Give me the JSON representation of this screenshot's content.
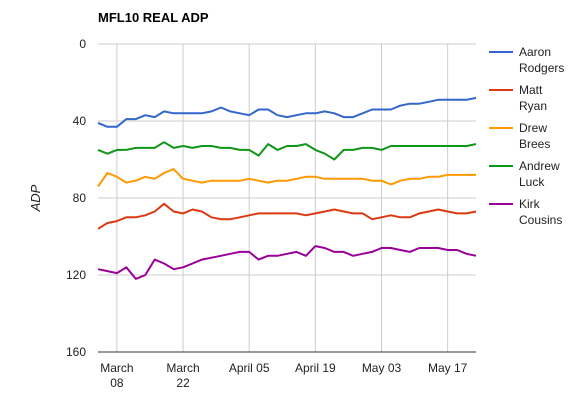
{
  "chart_data": {
    "type": "line",
    "title": "MFL10 REAL ADP",
    "ylabel": "ADP",
    "xlabel": "",
    "y_reversed": true,
    "ylim": [
      0,
      160
    ],
    "y_ticks": [
      "0",
      "40",
      "80",
      "120",
      "160"
    ],
    "x_ticks": [
      {
        "line1": "March",
        "line2": "08",
        "date": "2015-03-08"
      },
      {
        "line1": "March",
        "line2": "22",
        "date": "2015-03-22"
      },
      {
        "line1": "April 05",
        "line2": "",
        "date": "2015-04-05"
      },
      {
        "line1": "April 19",
        "line2": "",
        "date": "2015-04-19"
      },
      {
        "line1": "May 03",
        "line2": "",
        "date": "2015-05-03"
      },
      {
        "line1": "May 17",
        "line2": "",
        "date": "2015-05-17"
      }
    ],
    "grid": true,
    "legend_position": "right",
    "x": [
      "2015-03-04",
      "2015-03-06",
      "2015-03-08",
      "2015-03-10",
      "2015-03-12",
      "2015-03-14",
      "2015-03-16",
      "2015-03-18",
      "2015-03-20",
      "2015-03-22",
      "2015-03-24",
      "2015-03-26",
      "2015-03-28",
      "2015-03-30",
      "2015-04-01",
      "2015-04-03",
      "2015-04-05",
      "2015-04-07",
      "2015-04-09",
      "2015-04-11",
      "2015-04-13",
      "2015-04-15",
      "2015-04-17",
      "2015-04-19",
      "2015-04-21",
      "2015-04-23",
      "2015-04-25",
      "2015-04-27",
      "2015-04-29",
      "2015-05-01",
      "2015-05-03",
      "2015-05-05",
      "2015-05-07",
      "2015-05-09",
      "2015-05-11",
      "2015-05-13",
      "2015-05-15",
      "2015-05-17",
      "2015-05-19",
      "2015-05-21",
      "2015-05-23"
    ],
    "series": [
      {
        "name": "Aaron Rodgers",
        "color": "#3366cc",
        "values": [
          41,
          43,
          43,
          39,
          39,
          37,
          38,
          35,
          36,
          36,
          36,
          36,
          35,
          33,
          35,
          36,
          37,
          34,
          34,
          37,
          38,
          37,
          36,
          36,
          35,
          36,
          38,
          38,
          36,
          34,
          34,
          34,
          32,
          31,
          31,
          30,
          29,
          29,
          29,
          29,
          28
        ]
      },
      {
        "name": "Matt Ryan",
        "color": "#dc3912",
        "values": [
          96,
          93,
          92,
          90,
          90,
          89,
          87,
          83,
          87,
          88,
          86,
          87,
          90,
          91,
          91,
          90,
          89,
          88,
          88,
          88,
          88,
          88,
          89,
          88,
          87,
          86,
          87,
          88,
          88,
          91,
          90,
          89,
          90,
          90,
          88,
          87,
          86,
          87,
          88,
          88,
          87
        ]
      },
      {
        "name": "Drew Brees",
        "color": "#ff9900",
        "values": [
          74,
          67,
          69,
          72,
          71,
          69,
          70,
          67,
          65,
          70,
          71,
          72,
          71,
          71,
          71,
          71,
          70,
          71,
          72,
          71,
          71,
          70,
          69,
          69,
          70,
          70,
          70,
          70,
          70,
          71,
          71,
          73,
          71,
          70,
          70,
          69,
          69,
          68,
          68,
          68,
          68
        ]
      },
      {
        "name": "Andrew Luck",
        "color": "#109618",
        "values": [
          55,
          57,
          55,
          55,
          54,
          54,
          54,
          51,
          54,
          53,
          54,
          53,
          53,
          54,
          54,
          55,
          55,
          58,
          52,
          55,
          53,
          53,
          52,
          55,
          57,
          60,
          55,
          55,
          54,
          54,
          55,
          53,
          53,
          53,
          53,
          53,
          53,
          53,
          53,
          53,
          52
        ]
      },
      {
        "name": "Kirk Cousins",
        "color": "#990099",
        "values": [
          117,
          118,
          119,
          116,
          122,
          120,
          112,
          114,
          117,
          116,
          114,
          112,
          111,
          110,
          109,
          108,
          108,
          112,
          110,
          110,
          109,
          108,
          110,
          105,
          106,
          108,
          108,
          110,
          109,
          108,
          106,
          106,
          107,
          108,
          106,
          106,
          106,
          107,
          107,
          109,
          110
        ]
      }
    ]
  }
}
